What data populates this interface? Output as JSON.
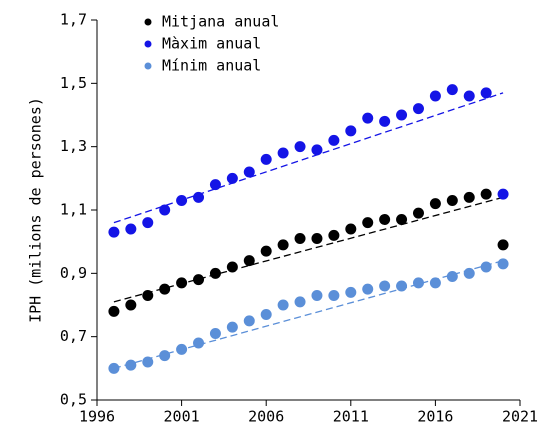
{
  "chart_data": {
    "type": "scatter",
    "y_label": "IPH (milions de persones)",
    "xlim": [
      1996,
      2021
    ],
    "xticks": [
      1996,
      2001,
      2006,
      2011,
      2016,
      2021
    ],
    "ylim": [
      0.5,
      1.7
    ],
    "yticks": [
      {
        "value": 0.5,
        "label": "0,5"
      },
      {
        "value": 0.7,
        "label": "0,7"
      },
      {
        "value": 0.9,
        "label": "0,9"
      },
      {
        "value": 1.1,
        "label": "1,1"
      },
      {
        "value": 1.3,
        "label": "1,3"
      },
      {
        "value": 1.5,
        "label": "1,5"
      },
      {
        "value": 1.7,
        "label": "1,7"
      }
    ],
    "legend": "upper-left",
    "x": [
      1997,
      1998,
      1999,
      2000,
      2001,
      2002,
      2003,
      2004,
      2005,
      2006,
      2007,
      2008,
      2009,
      2010,
      2011,
      2012,
      2013,
      2014,
      2015,
      2016,
      2017,
      2018,
      2019,
      2020
    ],
    "series": [
      {
        "name": "Mitjana anual",
        "color": "#000000",
        "values": [
          0.78,
          0.8,
          0.83,
          0.85,
          0.87,
          0.88,
          0.9,
          0.92,
          0.94,
          0.97,
          0.99,
          1.01,
          1.01,
          1.02,
          1.04,
          1.06,
          1.07,
          1.07,
          1.09,
          1.12,
          1.13,
          1.14,
          1.15,
          0.99
        ],
        "trend": {
          "x": [
            1997,
            2020
          ],
          "values": [
            0.81,
            1.14
          ]
        }
      },
      {
        "name": "Màxim anual",
        "color": "#1414e6",
        "values": [
          1.03,
          1.04,
          1.06,
          1.1,
          1.13,
          1.14,
          1.18,
          1.2,
          1.22,
          1.26,
          1.28,
          1.3,
          1.29,
          1.32,
          1.35,
          1.39,
          1.38,
          1.4,
          1.42,
          1.46,
          1.48,
          1.46,
          1.47,
          1.15
        ],
        "trend": {
          "x": [
            1997,
            2020
          ],
          "values": [
            1.06,
            1.47
          ]
        }
      },
      {
        "name": "Mínim anual",
        "color": "#5b8fd8",
        "values": [
          0.6,
          0.61,
          0.62,
          0.64,
          0.66,
          0.68,
          0.71,
          0.73,
          0.75,
          0.77,
          0.8,
          0.81,
          0.83,
          0.83,
          0.84,
          0.85,
          0.86,
          0.86,
          0.87,
          0.87,
          0.89,
          0.9,
          0.92,
          0.93
        ],
        "trend": {
          "x": [
            1997,
            2020
          ],
          "values": [
            0.6,
            0.94
          ]
        }
      }
    ]
  }
}
